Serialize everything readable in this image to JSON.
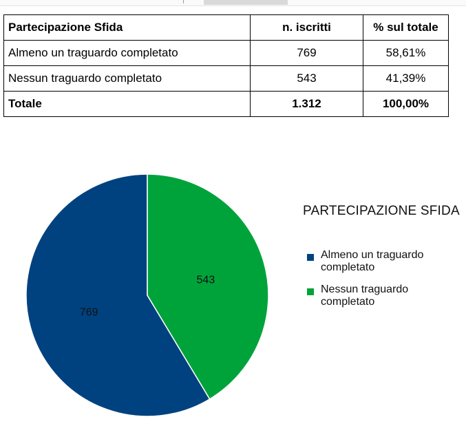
{
  "table": {
    "header": [
      "Partecipazione Sfida",
      "n. iscritti",
      "% sul totale"
    ],
    "rows": [
      [
        "Almeno un traguardo completato",
        "769",
        "58,61%"
      ],
      [
        "Nessun traguardo completato",
        "543",
        "41,39%"
      ]
    ],
    "total": [
      "Totale",
      "1.312",
      "100,00%"
    ]
  },
  "chart_data": {
    "type": "pie",
    "title": "PARTECIPAZIONE SFIDA",
    "legend_position": "right",
    "slices": [
      {
        "label": "Almeno un traguardo completato",
        "value": 769,
        "data_label": "769",
        "color": "#00427f"
      },
      {
        "label": "Nessun traguardo completato",
        "value": 543,
        "data_label": "543",
        "color": "#00a33a"
      }
    ]
  }
}
